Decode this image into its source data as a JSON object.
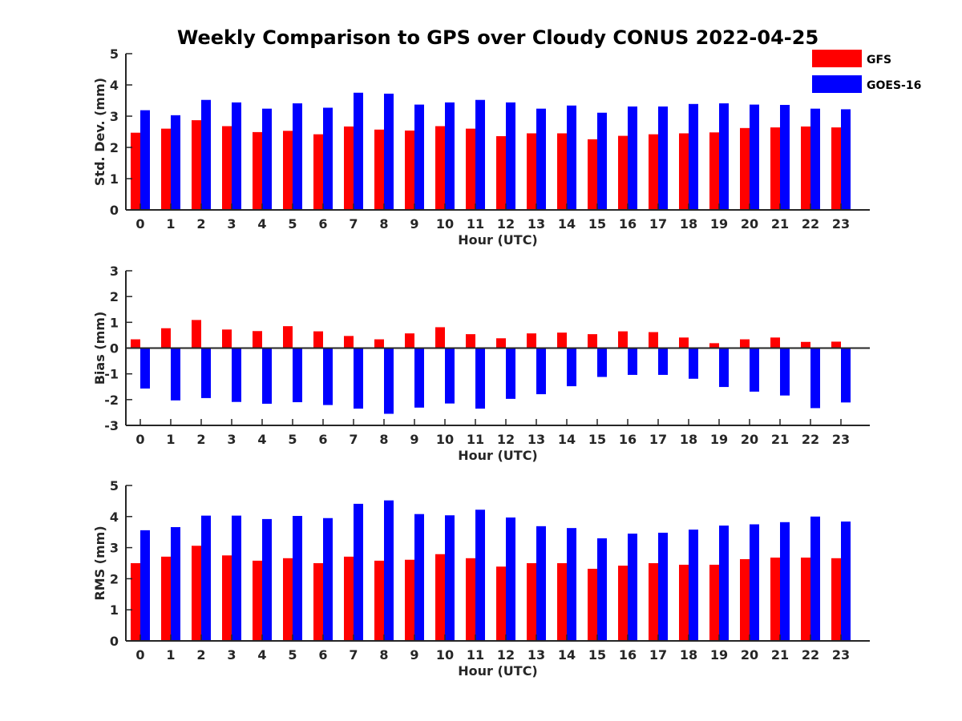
{
  "figure": {
    "title": "Weekly Comparison to GPS over Cloudy CONUS 2022-04-25"
  },
  "legend": {
    "placement": "top-right",
    "entries": [
      {
        "name": "GFS",
        "color": "#ff0000"
      },
      {
        "name": "GOES-16",
        "color": "#0000ff"
      }
    ]
  },
  "chart_data": [
    {
      "type": "bar",
      "xlabel": "Hour (UTC)",
      "ylabel": "Std. Dev. (mm)",
      "ylim": [
        0,
        5
      ],
      "yticks": [
        "0",
        "1",
        "2",
        "3",
        "4",
        "5"
      ],
      "categories": [
        "0",
        "1",
        "2",
        "3",
        "4",
        "5",
        "6",
        "7",
        "8",
        "9",
        "10",
        "11",
        "12",
        "13",
        "14",
        "15",
        "16",
        "17",
        "18",
        "19",
        "20",
        "21",
        "22",
        "23"
      ],
      "series": [
        {
          "name": "GFS",
          "color": "#ff0000",
          "values": [
            2.47,
            2.6,
            2.87,
            2.68,
            2.49,
            2.53,
            2.42,
            2.67,
            2.57,
            2.54,
            2.68,
            2.6,
            2.36,
            2.45,
            2.45,
            2.26,
            2.37,
            2.42,
            2.45,
            2.48,
            2.62,
            2.64,
            2.67,
            2.64
          ]
        },
        {
          "name": "GOES-16",
          "color": "#0000ff",
          "values": [
            3.19,
            3.03,
            3.52,
            3.44,
            3.24,
            3.41,
            3.27,
            3.75,
            3.72,
            3.37,
            3.44,
            3.52,
            3.44,
            3.24,
            3.34,
            3.11,
            3.31,
            3.31,
            3.39,
            3.41,
            3.37,
            3.36,
            3.24,
            3.22
          ]
        }
      ]
    },
    {
      "type": "bar",
      "xlabel": "Hour (UTC)",
      "ylabel": "Bias (mm)",
      "ylim": [
        -3,
        3
      ],
      "yticks": [
        "-3",
        "-2",
        "-1",
        "0",
        "1",
        "2",
        "3"
      ],
      "categories": [
        "0",
        "1",
        "2",
        "3",
        "4",
        "5",
        "6",
        "7",
        "8",
        "9",
        "10",
        "11",
        "12",
        "13",
        "14",
        "15",
        "16",
        "17",
        "18",
        "19",
        "20",
        "21",
        "22",
        "23"
      ],
      "series": [
        {
          "name": "GFS",
          "color": "#ff0000",
          "values": [
            0.34,
            0.77,
            1.09,
            0.72,
            0.66,
            0.85,
            0.65,
            0.47,
            0.34,
            0.57,
            0.81,
            0.54,
            0.38,
            0.57,
            0.6,
            0.54,
            0.65,
            0.62,
            0.41,
            0.19,
            0.34,
            0.41,
            0.24,
            0.25
          ]
        },
        {
          "name": "GOES-16",
          "color": "#0000ff",
          "values": [
            -1.57,
            -2.03,
            -1.94,
            -2.09,
            -2.16,
            -2.1,
            -2.21,
            -2.35,
            -2.55,
            -2.31,
            -2.15,
            -2.35,
            -1.97,
            -1.79,
            -1.48,
            -1.12,
            -1.04,
            -1.04,
            -1.19,
            -1.51,
            -1.69,
            -1.84,
            -2.33,
            -2.11
          ]
        }
      ]
    },
    {
      "type": "bar",
      "xlabel": "Hour (UTC)",
      "ylabel": "RMS (mm)",
      "ylim": [
        0,
        5
      ],
      "yticks": [
        "0",
        "1",
        "2",
        "3",
        "4",
        "5"
      ],
      "categories": [
        "0",
        "1",
        "2",
        "3",
        "4",
        "5",
        "6",
        "7",
        "8",
        "9",
        "10",
        "11",
        "12",
        "13",
        "14",
        "15",
        "16",
        "17",
        "18",
        "19",
        "20",
        "21",
        "22",
        "23"
      ],
      "series": [
        {
          "name": "GFS",
          "color": "#ff0000",
          "values": [
            2.5,
            2.71,
            3.06,
            2.75,
            2.58,
            2.66,
            2.5,
            2.71,
            2.58,
            2.61,
            2.79,
            2.66,
            2.39,
            2.5,
            2.5,
            2.32,
            2.42,
            2.5,
            2.45,
            2.45,
            2.63,
            2.68,
            2.68,
            2.66
          ]
        },
        {
          "name": "GOES-16",
          "color": "#0000ff",
          "values": [
            3.56,
            3.66,
            4.03,
            4.03,
            3.92,
            4.02,
            3.95,
            4.41,
            4.52,
            4.08,
            4.04,
            4.22,
            3.97,
            3.69,
            3.63,
            3.3,
            3.45,
            3.48,
            3.58,
            3.71,
            3.75,
            3.82,
            4.0,
            3.84
          ]
        }
      ]
    }
  ]
}
